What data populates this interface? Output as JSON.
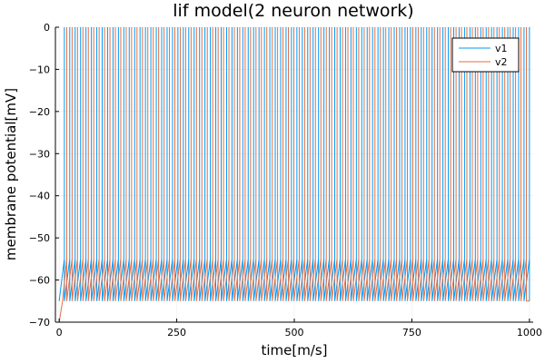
{
  "chart_data": {
    "type": "line",
    "title": "lif model(2 neuron network)",
    "xlabel": "time[m/s]",
    "ylabel": "membrane potential[mV]",
    "xlim": [
      -8,
      1008
    ],
    "ylim": [
      -70,
      0
    ],
    "xticks": [
      0,
      250,
      500,
      750,
      1000
    ],
    "yticks": [
      -70,
      -60,
      -50,
      -40,
      -30,
      -20,
      -10,
      0
    ],
    "grid": true,
    "legend_position": "top-right",
    "series": [
      {
        "name": "v1",
        "color": "#009af9",
        "v_rest": -65,
        "v_threshold": -55,
        "v_spike": 0,
        "first_spike_time": 11,
        "spike_period": 11.5
      },
      {
        "name": "v2",
        "color": "#e26f46",
        "v_start": -70,
        "v_rest": -65,
        "v_threshold": -55,
        "v_spike": 0,
        "first_spike_time": 16,
        "spike_period": 11.5
      }
    ],
    "t_end": 1000
  }
}
